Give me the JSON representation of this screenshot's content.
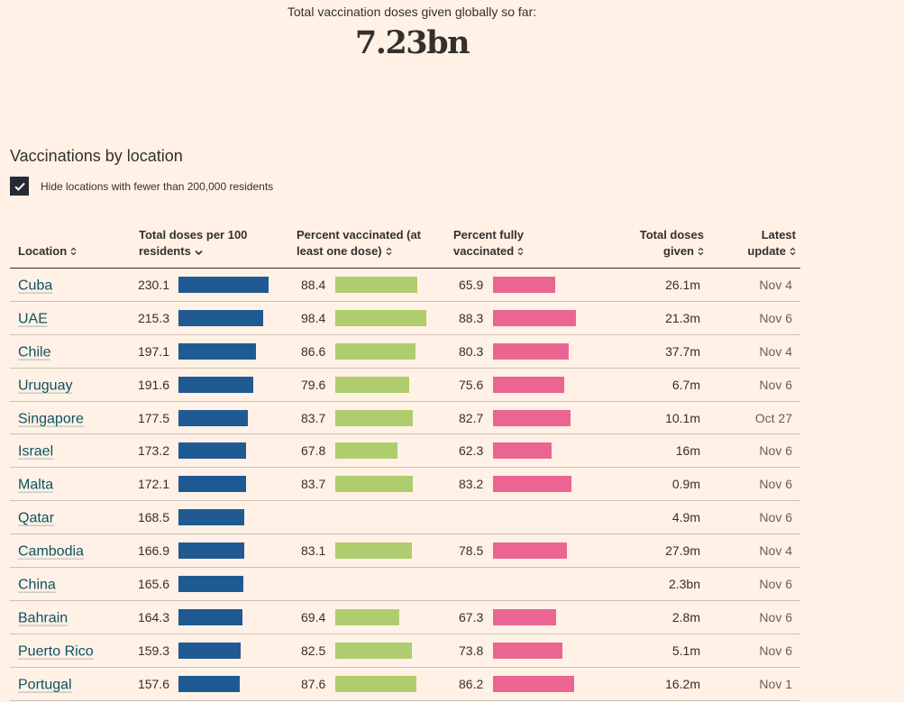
{
  "summary": {
    "label": "Total vaccination doses given globally so far:",
    "value": "7.23bn"
  },
  "section_title": "Vaccinations by location",
  "filter": {
    "label": "Hide locations with fewer than 200,000 residents",
    "checked": true
  },
  "colors": {
    "background": "#fff1e5",
    "doses_bar": "#205a93",
    "vaccinated_bar": "#afcd6e",
    "fully_bar": "#eb6593",
    "link": "#0d5263"
  },
  "columns": {
    "location": "Location",
    "doses_line1": "Total doses per 100",
    "doses_line2": "residents",
    "vaccinated_line1": "Percent vaccinated (at",
    "vaccinated_line2": "least one dose)",
    "fully_line1": "Percent fully",
    "fully_line2": "vaccinated",
    "total_line1": "Total doses",
    "total_line2": "given",
    "update_line1": "Latest",
    "update_line2": "update"
  },
  "scales": {
    "doses_max": 230.1,
    "percent_max": 100
  },
  "rows": [
    {
      "location": "Cuba",
      "doses": "230.1",
      "vaccinated": "88.4",
      "fully": "65.9",
      "total": "26.1m",
      "update": "Nov 4"
    },
    {
      "location": "UAE",
      "doses": "215.3",
      "vaccinated": "98.4",
      "fully": "88.3",
      "total": "21.3m",
      "update": "Nov 6"
    },
    {
      "location": "Chile",
      "doses": "197.1",
      "vaccinated": "86.6",
      "fully": "80.3",
      "total": "37.7m",
      "update": "Nov 4"
    },
    {
      "location": "Uruguay",
      "doses": "191.6",
      "vaccinated": "79.6",
      "fully": "75.6",
      "total": "6.7m",
      "update": "Nov 6"
    },
    {
      "location": "Singapore",
      "doses": "177.5",
      "vaccinated": "83.7",
      "fully": "82.7",
      "total": "10.1m",
      "update": "Oct 27"
    },
    {
      "location": "Israel",
      "doses": "173.2",
      "vaccinated": "67.8",
      "fully": "62.3",
      "total": "16m",
      "update": "Nov 6"
    },
    {
      "location": "Malta",
      "doses": "172.1",
      "vaccinated": "83.7",
      "fully": "83.2",
      "total": "0.9m",
      "update": "Nov 6"
    },
    {
      "location": "Qatar",
      "doses": "168.5",
      "vaccinated": "",
      "fully": "",
      "total": "4.9m",
      "update": "Nov 6"
    },
    {
      "location": "Cambodia",
      "doses": "166.9",
      "vaccinated": "83.1",
      "fully": "78.5",
      "total": "27.9m",
      "update": "Nov 4"
    },
    {
      "location": "China",
      "doses": "165.6",
      "vaccinated": "",
      "fully": "",
      "total": "2.3bn",
      "update": "Nov 6"
    },
    {
      "location": "Bahrain",
      "doses": "164.3",
      "vaccinated": "69.4",
      "fully": "67.3",
      "total": "2.8m",
      "update": "Nov 6"
    },
    {
      "location": "Puerto Rico",
      "doses": "159.3",
      "vaccinated": "82.5",
      "fully": "73.8",
      "total": "5.1m",
      "update": "Nov 6"
    },
    {
      "location": "Portugal",
      "doses": "157.6",
      "vaccinated": "87.6",
      "fully": "86.2",
      "total": "16.2m",
      "update": "Nov 1"
    }
  ]
}
